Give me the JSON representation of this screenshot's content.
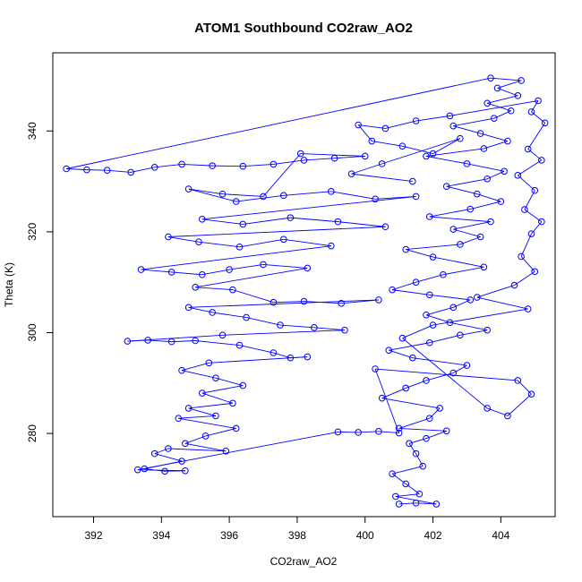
{
  "chart_data": {
    "type": "scatter",
    "title": "ATOM1 Southbound CO2raw_AO2",
    "xlabel": "CO2raw_AO2",
    "ylabel": "Theta (K)",
    "xlim": [
      390.8,
      405.6
    ],
    "ylim": [
      263.5,
      355.5
    ],
    "x_ticks": [
      392,
      394,
      396,
      398,
      400,
      402,
      404
    ],
    "y_ticks": [
      280,
      300,
      320,
      340
    ],
    "marker": "open-circle",
    "connected": true,
    "series_color": "#0000ff",
    "grid": false,
    "series": [
      {
        "points": [
          [
            401.0,
            266.0
          ],
          [
            401.5,
            266.2
          ],
          [
            402.1,
            266.0
          ],
          [
            400.9,
            267.5
          ],
          [
            401.6,
            268.0
          ],
          [
            401.2,
            270.0
          ],
          [
            400.8,
            272.0
          ],
          [
            401.7,
            273.5
          ],
          [
            401.5,
            276.0
          ],
          [
            401.3,
            278.0
          ],
          [
            401.8,
            279.0
          ],
          [
            402.4,
            280.5
          ],
          [
            401.0,
            281.0
          ],
          [
            401.9,
            283.0
          ],
          [
            402.2,
            285.0
          ],
          [
            400.5,
            287.0
          ],
          [
            401.2,
            289.0
          ],
          [
            401.8,
            290.5
          ],
          [
            402.6,
            292.0
          ],
          [
            403.0,
            293.5
          ],
          [
            401.4,
            295.0
          ],
          [
            400.7,
            296.5
          ],
          [
            401.9,
            298.0
          ],
          [
            402.8,
            299.5
          ],
          [
            403.6,
            300.5
          ],
          [
            402.5,
            302.0
          ],
          [
            401.8,
            303.5
          ],
          [
            402.6,
            305.0
          ],
          [
            403.1,
            306.5
          ],
          [
            401.9,
            307.5
          ],
          [
            400.8,
            308.5
          ],
          [
            401.5,
            310.0
          ],
          [
            402.3,
            311.5
          ],
          [
            403.5,
            313.0
          ],
          [
            402.0,
            315.0
          ],
          [
            401.2,
            316.5
          ],
          [
            402.8,
            317.5
          ],
          [
            403.4,
            319.0
          ],
          [
            402.6,
            320.5
          ],
          [
            403.7,
            322.0
          ],
          [
            401.9,
            323.0
          ],
          [
            403.1,
            324.5
          ],
          [
            404.0,
            326.0
          ],
          [
            403.3,
            327.5
          ],
          [
            402.4,
            329.0
          ],
          [
            403.6,
            330.5
          ],
          [
            404.1,
            332.0
          ],
          [
            403.0,
            333.5
          ],
          [
            401.8,
            335.0
          ],
          [
            403.5,
            336.5
          ],
          [
            404.2,
            338.0
          ],
          [
            403.4,
            339.5
          ],
          [
            402.6,
            341.0
          ],
          [
            403.8,
            342.5
          ],
          [
            404.3,
            344.0
          ],
          [
            403.6,
            345.5
          ],
          [
            404.5,
            347.0
          ],
          [
            403.9,
            348.5
          ],
          [
            404.6,
            350.0
          ],
          [
            403.7,
            350.5
          ],
          [
            391.2,
            332.5
          ],
          [
            391.8,
            332.3
          ],
          [
            392.4,
            332.2
          ],
          [
            393.1,
            331.8
          ],
          [
            393.8,
            332.8
          ],
          [
            394.6,
            333.4
          ],
          [
            395.5,
            333.1
          ],
          [
            396.4,
            333.0
          ],
          [
            397.3,
            333.4
          ],
          [
            398.2,
            334.2
          ],
          [
            399.1,
            334.6
          ],
          [
            400.0,
            335.0
          ],
          [
            398.1,
            335.5
          ],
          [
            397.0,
            327.0
          ],
          [
            395.8,
            327.5
          ],
          [
            394.8,
            328.5
          ],
          [
            396.2,
            326.0
          ],
          [
            397.6,
            327.2
          ],
          [
            399.0,
            328.0
          ],
          [
            400.3,
            326.5
          ],
          [
            401.5,
            327.0
          ],
          [
            395.2,
            322.5
          ],
          [
            396.4,
            321.5
          ],
          [
            397.8,
            322.8
          ],
          [
            399.2,
            322.0
          ],
          [
            400.6,
            321.0
          ],
          [
            394.2,
            319.0
          ],
          [
            395.1,
            318.0
          ],
          [
            396.3,
            317.0
          ],
          [
            397.6,
            318.5
          ],
          [
            399.0,
            317.2
          ],
          [
            393.4,
            312.5
          ],
          [
            394.3,
            312.0
          ],
          [
            395.2,
            311.5
          ],
          [
            396.0,
            312.5
          ],
          [
            397.0,
            313.5
          ],
          [
            398.3,
            312.8
          ],
          [
            395.0,
            309.0
          ],
          [
            396.1,
            308.5
          ],
          [
            397.3,
            306.0
          ],
          [
            398.2,
            306.2
          ],
          [
            399.3,
            305.8
          ],
          [
            400.4,
            306.5
          ],
          [
            394.8,
            305.0
          ],
          [
            395.5,
            304.0
          ],
          [
            396.5,
            303.0
          ],
          [
            397.5,
            301.5
          ],
          [
            398.5,
            301.0
          ],
          [
            399.4,
            300.5
          ],
          [
            395.8,
            299.5
          ],
          [
            393.0,
            298.3
          ],
          [
            393.6,
            298.5
          ],
          [
            394.3,
            298.2
          ],
          [
            395.0,
            298.4
          ],
          [
            396.3,
            297.5
          ],
          [
            397.3,
            296.0
          ],
          [
            397.8,
            295.0
          ],
          [
            398.3,
            295.2
          ],
          [
            395.4,
            294.0
          ],
          [
            394.6,
            292.5
          ],
          [
            395.6,
            291.0
          ],
          [
            396.4,
            289.5
          ],
          [
            395.2,
            288.0
          ],
          [
            396.1,
            286.0
          ],
          [
            394.8,
            285.0
          ],
          [
            395.6,
            283.5
          ],
          [
            394.5,
            283.0
          ],
          [
            396.2,
            281.0
          ],
          [
            395.3,
            279.5
          ],
          [
            394.7,
            278.0
          ],
          [
            395.9,
            276.5
          ],
          [
            394.2,
            277.0
          ],
          [
            393.8,
            276.0
          ],
          [
            394.6,
            274.5
          ],
          [
            393.5,
            273.0
          ],
          [
            394.1,
            272.5
          ],
          [
            394.7,
            272.6
          ],
          [
            393.3,
            272.8
          ],
          [
            399.2,
            280.3
          ],
          [
            399.8,
            280.2
          ],
          [
            400.4,
            280.4
          ],
          [
            401.0,
            280.1
          ],
          [
            400.3,
            292.8
          ],
          [
            404.5,
            290.5
          ],
          [
            404.9,
            287.8
          ],
          [
            404.2,
            283.5
          ],
          [
            403.6,
            285.0
          ],
          [
            401.1,
            298.9
          ],
          [
            402.0,
            301.5
          ],
          [
            404.8,
            304.7
          ],
          [
            403.3,
            307.0
          ],
          [
            404.4,
            309.4
          ],
          [
            405.0,
            312.1
          ],
          [
            404.6,
            315.1
          ],
          [
            404.9,
            319.6
          ],
          [
            405.2,
            322.0
          ],
          [
            404.7,
            324.4
          ],
          [
            405.0,
            328.2
          ],
          [
            404.5,
            331.2
          ],
          [
            405.2,
            334.2
          ],
          [
            404.8,
            336.4
          ],
          [
            405.3,
            341.6
          ],
          [
            404.9,
            343.8
          ],
          [
            405.1,
            346.0
          ],
          [
            402.5,
            343.0
          ],
          [
            401.5,
            342.0
          ],
          [
            400.6,
            340.5
          ],
          [
            399.8,
            341.2
          ],
          [
            400.2,
            338.0
          ],
          [
            401.1,
            337.0
          ],
          [
            402.0,
            335.5
          ],
          [
            402.8,
            338.5
          ],
          [
            400.5,
            333.5
          ],
          [
            399.6,
            331.5
          ],
          [
            401.4,
            330.0
          ]
        ]
      }
    ]
  }
}
